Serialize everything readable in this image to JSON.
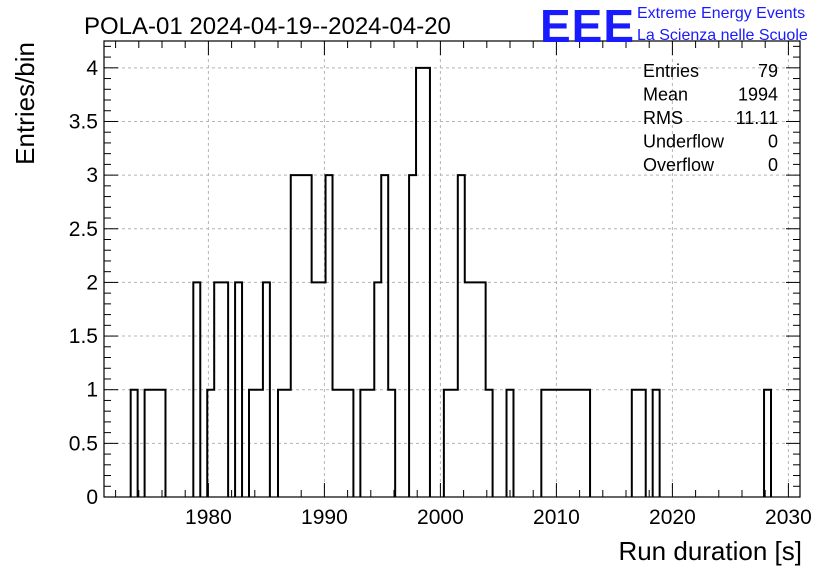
{
  "chart_data": {
    "type": "histogram",
    "title": "POLA-01 2024-04-19--2024-04-20",
    "xlabel": "Run duration [s]",
    "ylabel": "Entries/bin",
    "xlim": [
      1971,
      2031
    ],
    "ylim": [
      0,
      4.25
    ],
    "bin_width": 0.6,
    "grid": true,
    "x_ticks": [
      1980,
      1990,
      2000,
      2010,
      2020,
      2030
    ],
    "x_tick_labels": [
      "1980",
      "1990",
      "2000",
      "2010",
      "2020",
      "2030"
    ],
    "y_ticks": [
      0,
      0.5,
      1,
      1.5,
      2,
      2.5,
      3,
      3.5,
      4
    ],
    "y_tick_labels": [
      "0",
      "0.5",
      "1",
      "1.5",
      "2",
      "2.5",
      "3",
      "3.5",
      "4"
    ],
    "bins": [
      {
        "lo": 1973.3,
        "hi": 1973.9,
        "count": 1
      },
      {
        "lo": 1974.5,
        "hi": 1976.3,
        "count": 1
      },
      {
        "lo": 1978.7,
        "hi": 1979.3,
        "count": 2
      },
      {
        "lo": 1979.9,
        "hi": 1980.5,
        "count": 1
      },
      {
        "lo": 1980.5,
        "hi": 1981.7,
        "count": 2
      },
      {
        "lo": 1982.3,
        "hi": 1982.9,
        "count": 2
      },
      {
        "lo": 1983.5,
        "hi": 1984.7,
        "count": 1
      },
      {
        "lo": 1984.7,
        "hi": 1985.3,
        "count": 2
      },
      {
        "lo": 1986.0,
        "hi": 1987.1,
        "count": 1
      },
      {
        "lo": 1987.1,
        "hi": 1988.9,
        "count": 3
      },
      {
        "lo": 1988.9,
        "hi": 1990.1,
        "count": 2
      },
      {
        "lo": 1990.1,
        "hi": 1990.7,
        "count": 3
      },
      {
        "lo": 1990.7,
        "hi": 1992.5,
        "count": 1
      },
      {
        "lo": 1993.1,
        "hi": 1994.3,
        "count": 1
      },
      {
        "lo": 1994.3,
        "hi": 1994.9,
        "count": 2
      },
      {
        "lo": 1994.9,
        "hi": 1995.5,
        "count": 3
      },
      {
        "lo": 1995.5,
        "hi": 1996.1,
        "count": 1
      },
      {
        "lo": 1997.3,
        "hi": 1997.9,
        "count": 3
      },
      {
        "lo": 1997.9,
        "hi": 1999.1,
        "count": 4
      },
      {
        "lo": 2000.3,
        "hi": 2001.5,
        "count": 1
      },
      {
        "lo": 2001.5,
        "hi": 2002.1,
        "count": 3
      },
      {
        "lo": 2002.1,
        "hi": 2003.9,
        "count": 2
      },
      {
        "lo": 2003.9,
        "hi": 2004.5,
        "count": 1
      },
      {
        "lo": 2005.7,
        "hi": 2006.3,
        "count": 1
      },
      {
        "lo": 2008.7,
        "hi": 2012.9,
        "count": 1
      },
      {
        "lo": 2016.5,
        "hi": 2017.7,
        "count": 1
      },
      {
        "lo": 2018.3,
        "hi": 2018.9,
        "count": 1
      },
      {
        "lo": 2027.9,
        "hi": 2028.5,
        "count": 1
      }
    ],
    "stats": [
      {
        "label": "Entries",
        "value": "79"
      },
      {
        "label": "Mean",
        "value": "1994"
      },
      {
        "label": "RMS",
        "value": "11.11"
      },
      {
        "label": "Underflow",
        "value": "0"
      },
      {
        "label": "Overflow",
        "value": "0"
      }
    ]
  },
  "logo": {
    "mark": "EEE",
    "line1": "Extreme Energy Events",
    "line2": "La Scienza nelle Scuole",
    "color": "#1a1aff"
  }
}
